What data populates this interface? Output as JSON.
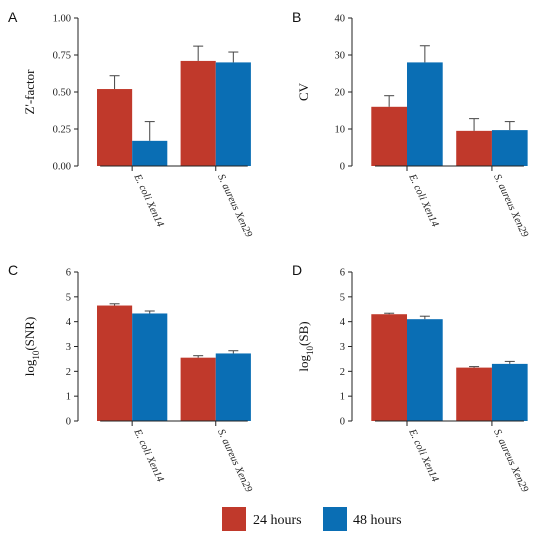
{
  "colors": {
    "24h": "#C0392B",
    "48h": "#0A6EB4"
  },
  "legend": [
    {
      "key": "24h",
      "label": "24 hours"
    },
    {
      "key": "48h",
      "label": "48 hours"
    }
  ],
  "chart_data": [
    {
      "panel": "A",
      "type": "bar",
      "ylabel": "Z'-factor",
      "ylim": [
        0,
        1
      ],
      "yticks": [
        "0.00",
        "0.25",
        "0.50",
        "0.75",
        "1.00"
      ],
      "categories": [
        "E. coli Xen14",
        "S. aureus Xen29"
      ],
      "series": [
        {
          "name": "24 hours",
          "values": [
            0.52,
            0.71
          ],
          "errors": [
            0.09,
            0.1
          ]
        },
        {
          "name": "48 hours",
          "values": [
            0.17,
            0.7
          ],
          "errors": [
            0.13,
            0.07
          ]
        }
      ]
    },
    {
      "panel": "B",
      "type": "bar",
      "ylabel": "CV",
      "ylim": [
        0,
        40
      ],
      "yticks": [
        "0",
        "10",
        "20",
        "30",
        "40"
      ],
      "categories": [
        "E. coli Xen14",
        "S. aureus Xen29"
      ],
      "series": [
        {
          "name": "24 hours",
          "values": [
            16,
            9.5
          ],
          "errors": [
            3,
            3.3
          ]
        },
        {
          "name": "48 hours",
          "values": [
            28,
            9.7
          ],
          "errors": [
            4.5,
            2.3
          ]
        }
      ]
    },
    {
      "panel": "C",
      "type": "bar",
      "ylabel": "log10(SNR)",
      "ylim": [
        0,
        6
      ],
      "yticks": [
        "0",
        "1",
        "2",
        "3",
        "4",
        "5",
        "6"
      ],
      "categories": [
        "E. coli Xen14",
        "S. aureus Xen29"
      ],
      "series": [
        {
          "name": "24 hours",
          "values": [
            4.65,
            2.55
          ],
          "errors": [
            0.07,
            0.08
          ]
        },
        {
          "name": "48 hours",
          "values": [
            4.33,
            2.72
          ],
          "errors": [
            0.1,
            0.11
          ]
        }
      ]
    },
    {
      "panel": "D",
      "type": "bar",
      "ylabel": "log10(SB)",
      "ylim": [
        0,
        6
      ],
      "yticks": [
        "0",
        "1",
        "2",
        "3",
        "4",
        "5",
        "6"
      ],
      "categories": [
        "E. coli Xen14",
        "S. aureus Xen29"
      ],
      "series": [
        {
          "name": "24 hours",
          "values": [
            4.3,
            2.15
          ],
          "errors": [
            0.04,
            0.04
          ]
        },
        {
          "name": "48 hours",
          "values": [
            4.1,
            2.3
          ],
          "errors": [
            0.12,
            0.1
          ]
        }
      ]
    }
  ]
}
